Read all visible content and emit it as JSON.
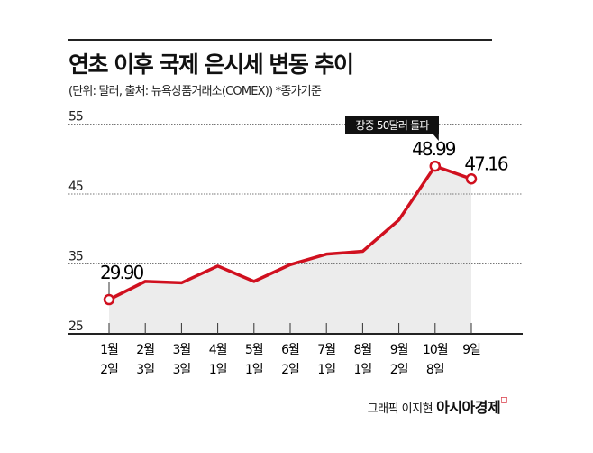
{
  "header": {
    "title": "연초 이후 국제 은시세 변동 추이",
    "subtitle": "(단위: 달러, 출처: 뉴욕상품거래소(COMEX))   *종가기준"
  },
  "footer": {
    "credit": "그래픽 이지현",
    "brand": "아시아경제"
  },
  "colors": {
    "line": "#d0101f",
    "fill": "#ececec",
    "callout": "#111111"
  },
  "chart_data": {
    "type": "line",
    "title": "연초 이후 국제 은시세 변동 추이",
    "ylabel": "달러",
    "ylim": [
      25,
      55
    ],
    "yticks": [
      25,
      35,
      45,
      55
    ],
    "grid": true,
    "categories": [
      "1월 2일",
      "2월 3일",
      "3월 3일",
      "4월 1일",
      "5월 1일",
      "6월 2일",
      "7월 1일",
      "8월 1일",
      "9월 2일",
      "10월 8일",
      "9일"
    ],
    "category_lines": [
      [
        "1월",
        "2일"
      ],
      [
        "2월",
        "3일"
      ],
      [
        "3월",
        "3일"
      ],
      [
        "4월",
        "1일"
      ],
      [
        "5월",
        "1일"
      ],
      [
        "6월",
        "2일"
      ],
      [
        "7월",
        "1일"
      ],
      [
        "8월",
        "1일"
      ],
      [
        "9월",
        "2일"
      ],
      [
        "10월",
        "8일"
      ],
      [
        "9일",
        ""
      ]
    ],
    "values": [
      29.9,
      32.5,
      32.3,
      34.7,
      32.5,
      34.9,
      36.4,
      36.8,
      41.3,
      48.99,
      47.16
    ],
    "data_labels": [
      {
        "index": 0,
        "text": "29.90"
      },
      {
        "index": 9,
        "text": "48.99"
      },
      {
        "index": 10,
        "text": "47.16"
      }
    ],
    "annotation": {
      "index": 9,
      "text": "장중 50달러 돌파"
    }
  }
}
